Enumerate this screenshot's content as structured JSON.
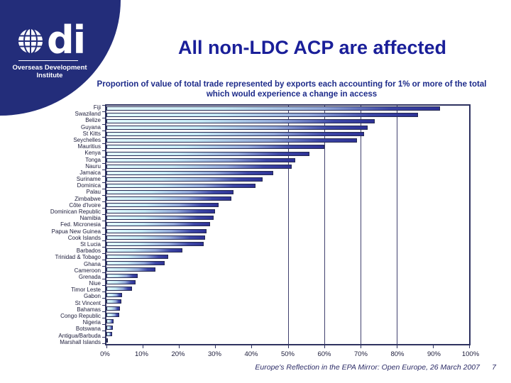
{
  "slide": {
    "title": "All non-LDC ACP are affected",
    "subtitle_line1": "Proportion of value of total trade represented by exports each accounting for 1% or more of the total",
    "subtitle_line2": "which would experience a change in access",
    "footer": "Europe's Reflection in the EPA Mirror: Open Europe, 26 March 2007",
    "page_number": "7"
  },
  "logo": {
    "globe_icon": "globe-icon",
    "org_short": "di",
    "org_line1": "Overseas Development",
    "org_line2": "Institute"
  },
  "colors": {
    "sidebar_navy": "#232d7a",
    "title_blue": "#1a1f99",
    "subtitle_blue": "#1d2b8a",
    "label_color": "#1c1c3a",
    "axis_color": "#2e3260",
    "gridline_color": "#40406e",
    "bar_border": "#262a52",
    "footer_color": "#2b2b66",
    "bar_start": "#e2f9fc",
    "bar_mid1": "#c6e9f4",
    "bar_mid2": "#93a9da",
    "bar_mid3": "#3d47a6",
    "bar_end": "#2e3296"
  },
  "chart_data": {
    "type": "bar",
    "orientation": "horizontal",
    "title": "Proportion of value of total trade represented by exports each accounting for 1% or more of the total which would experience a change in access",
    "xlabel": "",
    "ylabel": "",
    "xlim": [
      0,
      100
    ],
    "grid": "vertical-partial",
    "gridlines_at": [
      50,
      60,
      70,
      80
    ],
    "x_tick_values": [
      0,
      10,
      20,
      30,
      40,
      50,
      60,
      70,
      80,
      90,
      100
    ],
    "x_tick_labels": [
      "0%",
      "10%",
      "20%",
      "30%",
      "40%",
      "50%",
      "60%",
      "70%",
      "80%",
      "90%",
      "100%"
    ],
    "categories": [
      "Fiji",
      "Swaziland",
      "Belize",
      "Guyana",
      "St Kitts",
      "Seychelles",
      "Mauritius",
      "Kenya",
      "Tonga",
      "Nauru",
      "Jamaica",
      "Suriname",
      "Dominica",
      "Palau",
      "Zimbabwe",
      "Côte d'Ivoire",
      "Dominican Republic",
      "Namibia",
      "Fed. Micronesia",
      "Papua New Guinea",
      "Cook Islands",
      "St Lucia",
      "Barbados",
      "Trinidad & Tobago",
      "Ghana",
      "Cameroon",
      "Grenada",
      "Niue",
      "Timor Leste",
      "Gabon",
      "St Vincent",
      "Bahamas",
      "Congo Republic",
      "Nigeria",
      "Botswana",
      "Antigua/Barbuda",
      "Marshall Islands"
    ],
    "values": [
      92,
      86,
      74,
      72,
      71,
      69,
      60,
      56,
      52,
      51,
      46,
      43,
      41,
      35,
      34.5,
      31,
      30,
      29.5,
      28.5,
      27.5,
      27.2,
      26.8,
      21,
      17,
      16,
      13.5,
      8.7,
      8,
      7,
      4.3,
      4.1,
      3.8,
      3.5,
      1.9,
      1.7,
      1.6,
      0.4
    ]
  }
}
